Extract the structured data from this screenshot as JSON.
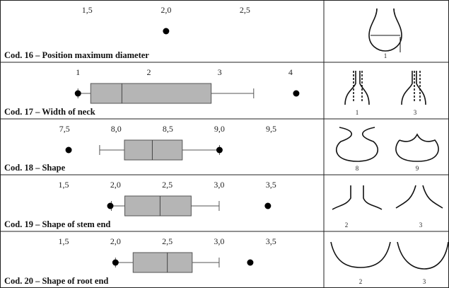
{
  "chart_data": [
    {
      "type": "box",
      "title": "Cod. 16 – Position maximum diameter",
      "xlim": [
        0.97,
        3.0
      ],
      "xticks": [
        {
          "value": 1.5,
          "label": "1,5"
        },
        {
          "value": 2.0,
          "label": "2,0"
        },
        {
          "value": 2.5,
          "label": "2,5"
        }
      ],
      "outliers": [
        2.0
      ],
      "sketch_labels": [
        "1"
      ]
    },
    {
      "type": "box",
      "title": "Cod. 17 – Width of neck",
      "xlim": [
        -0.05,
        4.47
      ],
      "xticks": [
        1,
        2,
        3,
        4
      ],
      "box": {
        "whislo": 1.0,
        "q1": 1.18,
        "med": 1.62,
        "q3": 2.88,
        "whishi": 3.48
      },
      "outliers": [
        1.0,
        4.08
      ],
      "sketch_labels": [
        "1",
        "3"
      ]
    },
    {
      "type": "box",
      "title": "Cod. 18 – Shape",
      "xlim": [
        6.91,
        10.01
      ],
      "xticks": [
        {
          "value": 7.5,
          "label": "7,5"
        },
        {
          "value": 8.0,
          "label": "8,0"
        },
        {
          "value": 8.5,
          "label": "8,5"
        },
        {
          "value": 9.0,
          "label": "9,0"
        },
        {
          "value": 9.5,
          "label": "9,5"
        }
      ],
      "box": {
        "whislo": 7.84,
        "q1": 8.08,
        "med": 8.35,
        "q3": 8.64,
        "whishi": 9.0
      },
      "outliers": [
        7.54,
        9.0
      ],
      "sketch_labels": [
        "8",
        "9"
      ]
    },
    {
      "type": "box",
      "title": "Cod. 19 – Shape of stem end",
      "xlim": [
        0.92,
        4.01
      ],
      "xticks": [
        {
          "value": 1.5,
          "label": "1,5"
        },
        {
          "value": 2.0,
          "label": "2,0"
        },
        {
          "value": 2.5,
          "label": "2,5"
        },
        {
          "value": 3.0,
          "label": "3,0"
        },
        {
          "value": 3.5,
          "label": "3,5"
        }
      ],
      "box": {
        "whislo": 1.96,
        "q1": 2.09,
        "med": 2.43,
        "q3": 2.73,
        "whishi": 3.0
      },
      "outliers": [
        1.95,
        3.47
      ],
      "sketch_labels": [
        "2",
        "3"
      ]
    },
    {
      "type": "box",
      "title": "Cod. 20 – Shape of root end",
      "xlim": [
        0.92,
        4.01
      ],
      "xticks": [
        {
          "value": 1.5,
          "label": "1,5"
        },
        {
          "value": 2.0,
          "label": "2,0"
        },
        {
          "value": 2.5,
          "label": "2,5"
        },
        {
          "value": 3.0,
          "label": "3,0"
        },
        {
          "value": 3.5,
          "label": "3,5"
        }
      ],
      "box": {
        "whislo": 2.0,
        "q1": 2.17,
        "med": 2.5,
        "q3": 2.74,
        "whishi": 3.0
      },
      "outliers": [
        2.0,
        3.3
      ],
      "sketch_labels": [
        "2",
        "3"
      ]
    }
  ]
}
